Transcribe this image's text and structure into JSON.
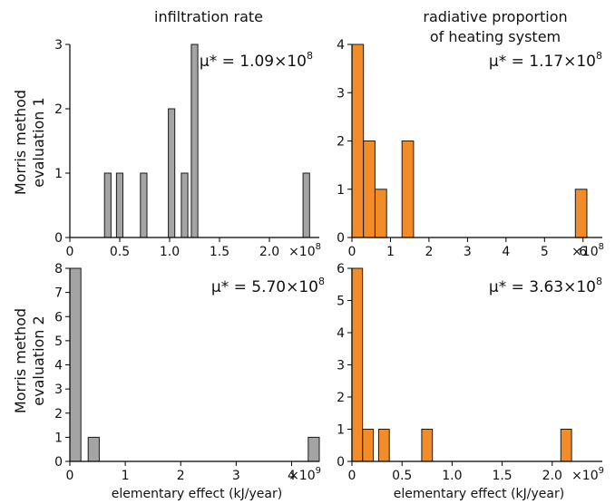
{
  "figure": {
    "col_titles": [
      "infiltration rate",
      "radiative proportion",
      "of heating system"
    ],
    "row_labels": [
      [
        "Morris method",
        "evaluation 1"
      ],
      [
        "Morris method",
        "evaluation 2"
      ]
    ],
    "xlabel": "elementary effect (kJ/year)",
    "colors": {
      "gray": "#a4a4a4",
      "orange": "#f28c28",
      "edge": "#1a1a1a"
    }
  },
  "chart_data": [
    {
      "type": "bar",
      "title": "infiltration rate",
      "ylabel": "Morris method evaluation 1",
      "annotation_prefix": "μ* = ",
      "annotation_mantissa": "1.09",
      "annotation_exp": "8",
      "x_multiplier": "×10",
      "x_multiplier_exp": "8",
      "xlim": [
        0,
        2.5
      ],
      "ylim": [
        0,
        3
      ],
      "xticks": [
        0,
        0.5,
        1.0,
        1.5,
        2.0
      ],
      "xtick_labels": [
        "0",
        "0.5",
        "1.0",
        "1.5",
        "2.0"
      ],
      "yticks": [
        0,
        1,
        2,
        3
      ],
      "ytick_labels": [
        "0",
        "1",
        "2",
        "3"
      ],
      "bar_width": 0.065,
      "bins": [
        {
          "x": 0.38,
          "count": 1
        },
        {
          "x": 0.5,
          "count": 1
        },
        {
          "x": 0.74,
          "count": 1
        },
        {
          "x": 1.02,
          "count": 2
        },
        {
          "x": 1.15,
          "count": 1
        },
        {
          "x": 1.25,
          "count": 3
        },
        {
          "x": 2.37,
          "count": 1
        }
      ],
      "color": "#a4a4a4"
    },
    {
      "type": "bar",
      "title": "radiative proportion of heating system",
      "ylabel": "",
      "annotation_prefix": "μ* = ",
      "annotation_mantissa": "1.17",
      "annotation_exp": "8",
      "x_multiplier": "×10",
      "x_multiplier_exp": "8",
      "xlim": [
        0,
        6.5
      ],
      "ylim": [
        0,
        4
      ],
      "xticks": [
        0,
        1,
        2,
        3,
        4,
        5,
        6
      ],
      "xtick_labels": [
        "0",
        "1",
        "2",
        "3",
        "4",
        "5",
        "6"
      ],
      "yticks": [
        0,
        1,
        2,
        3,
        4
      ],
      "ytick_labels": [
        "0",
        "1",
        "2",
        "3",
        "4"
      ],
      "bar_width": 0.3,
      "bins": [
        {
          "x": 0.15,
          "count": 4
        },
        {
          "x": 0.45,
          "count": 2
        },
        {
          "x": 0.75,
          "count": 1
        },
        {
          "x": 1.45,
          "count": 2
        },
        {
          "x": 5.95,
          "count": 1
        }
      ],
      "color": "#f28c28"
    },
    {
      "type": "bar",
      "title": "",
      "ylabel": "Morris method evaluation 2",
      "annotation_prefix": "μ* = ",
      "annotation_mantissa": "5.70",
      "annotation_exp": "8",
      "x_multiplier": "×10",
      "x_multiplier_exp": "9",
      "xlim": [
        0,
        4.5
      ],
      "ylim": [
        0,
        8
      ],
      "xticks": [
        0,
        1,
        2,
        3,
        4
      ],
      "xtick_labels": [
        "0",
        "1",
        "2",
        "3",
        "4"
      ],
      "yticks": [
        0,
        1,
        2,
        3,
        4,
        5,
        6,
        7,
        8
      ],
      "ytick_labels": [
        "0",
        "1",
        "2",
        "3",
        "4",
        "5",
        "6",
        "7",
        "8"
      ],
      "bar_width": 0.2,
      "bins": [
        {
          "x": 0.1,
          "count": 8
        },
        {
          "x": 0.43,
          "count": 1
        },
        {
          "x": 4.4,
          "count": 1
        }
      ],
      "color": "#a4a4a4"
    },
    {
      "type": "bar",
      "title": "",
      "ylabel": "",
      "annotation_prefix": "μ* = ",
      "annotation_mantissa": "3.63",
      "annotation_exp": "8",
      "x_multiplier": "×10",
      "x_multiplier_exp": "9",
      "xlim": [
        0,
        2.5
      ],
      "ylim": [
        0,
        6
      ],
      "xticks": [
        0,
        0.5,
        1.0,
        1.5,
        2.0
      ],
      "xtick_labels": [
        "0",
        "0.5",
        "1.0",
        "1.5",
        "2.0"
      ],
      "yticks": [
        0,
        1,
        2,
        3,
        4,
        5,
        6
      ],
      "ytick_labels": [
        "0",
        "1",
        "2",
        "3",
        "4",
        "5",
        "6"
      ],
      "bar_width": 0.107,
      "bins": [
        {
          "x": 0.053,
          "count": 6
        },
        {
          "x": 0.16,
          "count": 1
        },
        {
          "x": 0.32,
          "count": 1
        },
        {
          "x": 0.75,
          "count": 1
        },
        {
          "x": 2.14,
          "count": 1
        }
      ],
      "color": "#f28c28"
    }
  ]
}
